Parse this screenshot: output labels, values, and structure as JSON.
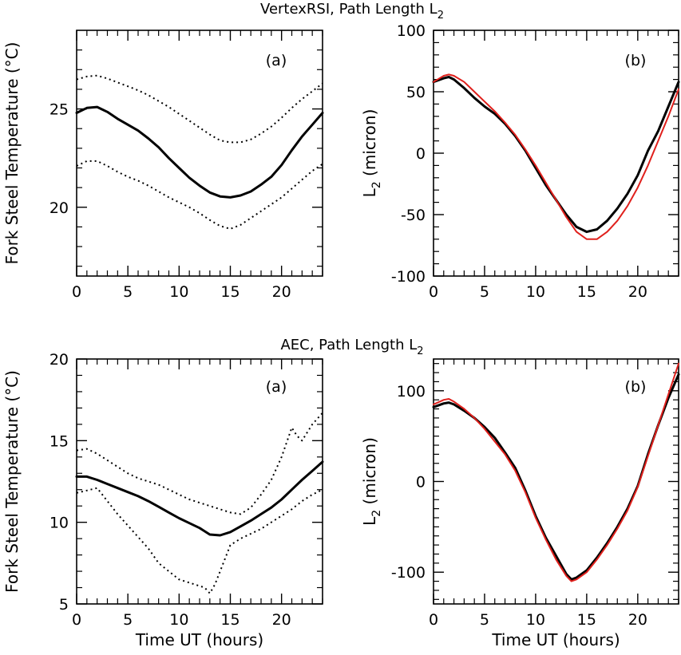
{
  "chart_data": [
    {
      "type": "line",
      "id": "vertex-a",
      "section_title": "VertexRSI, Path Length L",
      "section_title_sub": "2",
      "panel_label": "(a)",
      "xlabel": "",
      "ylabel": "Fork Steel Temperature (°C)",
      "xlim": [
        0,
        24
      ],
      "ylim": [
        16.5,
        29
      ],
      "xticks": [
        0,
        5,
        10,
        15,
        20
      ],
      "xminor": [
        1,
        2,
        3,
        4,
        6,
        7,
        8,
        9,
        11,
        12,
        13,
        14,
        16,
        17,
        18,
        19,
        21,
        22,
        23,
        24
      ],
      "yticks": [
        20,
        25
      ],
      "yminor": [
        17,
        18,
        19,
        21,
        22,
        23,
        24,
        26,
        27,
        28
      ],
      "series": [
        {
          "name": "mean",
          "color": "#000000",
          "style": "solid",
          "width": 3,
          "x": [
            0,
            1,
            2,
            3,
            4,
            5,
            6,
            7,
            8,
            9,
            10,
            11,
            12,
            13,
            14,
            15,
            16,
            17,
            18,
            19,
            20,
            21,
            22,
            23,
            24
          ],
          "y": [
            24.8,
            25.05,
            25.1,
            24.85,
            24.5,
            24.2,
            23.9,
            23.5,
            23.05,
            22.5,
            22.0,
            21.5,
            21.1,
            20.75,
            20.55,
            20.5,
            20.6,
            20.8,
            21.15,
            21.55,
            22.15,
            22.9,
            23.6,
            24.2,
            24.8
          ]
        },
        {
          "name": "upper",
          "color": "#000000",
          "style": "dotted",
          "width": 2,
          "x": [
            0,
            1,
            2,
            3,
            4,
            5,
            6,
            7,
            8,
            9,
            10,
            11,
            12,
            13,
            14,
            15,
            16,
            17,
            18,
            19,
            20,
            21,
            22,
            23,
            24
          ],
          "y": [
            26.5,
            26.65,
            26.7,
            26.55,
            26.35,
            26.15,
            25.95,
            25.7,
            25.4,
            25.1,
            24.75,
            24.4,
            24.05,
            23.7,
            23.4,
            23.3,
            23.3,
            23.45,
            23.75,
            24.1,
            24.55,
            25.05,
            25.5,
            25.9,
            26.3
          ]
        },
        {
          "name": "lower",
          "color": "#000000",
          "style": "dotted",
          "width": 2,
          "x": [
            0,
            1,
            2,
            3,
            4,
            5,
            6,
            7,
            8,
            9,
            10,
            11,
            12,
            13,
            14,
            15,
            16,
            17,
            18,
            19,
            20,
            21,
            22,
            23,
            24
          ],
          "y": [
            22.1,
            22.35,
            22.35,
            22.1,
            21.8,
            21.55,
            21.35,
            21.1,
            20.8,
            20.5,
            20.25,
            20.0,
            19.7,
            19.35,
            19.05,
            18.9,
            19.1,
            19.45,
            19.8,
            20.15,
            20.5,
            20.95,
            21.4,
            21.85,
            22.2
          ]
        }
      ]
    },
    {
      "type": "line",
      "id": "vertex-b",
      "panel_label": "(b)",
      "xlabel": "",
      "ylabel": "L",
      "ylabel_sub": "2",
      "ylabel_rest": " (micron)",
      "xlim": [
        0,
        24
      ],
      "ylim": [
        -100,
        100
      ],
      "xticks": [
        0,
        5,
        10,
        15,
        20
      ],
      "xminor": [
        1,
        2,
        3,
        4,
        6,
        7,
        8,
        9,
        11,
        12,
        13,
        14,
        16,
        17,
        18,
        19,
        21,
        22,
        23,
        24
      ],
      "yticks": [
        -100,
        -50,
        0,
        50,
        100
      ],
      "yminor": [
        -90,
        -80,
        -70,
        -60,
        -40,
        -30,
        -20,
        -10,
        10,
        20,
        30,
        40,
        60,
        70,
        80,
        90
      ],
      "series": [
        {
          "name": "measured",
          "color": "#000000",
          "style": "solid",
          "width": 3,
          "x": [
            0,
            1,
            1.5,
            2,
            3,
            4,
            5,
            6,
            7,
            8,
            9,
            10,
            11,
            12,
            13,
            14,
            15,
            16,
            17,
            18,
            19,
            20,
            21,
            22,
            23,
            24
          ],
          "y": [
            58,
            61,
            62,
            60,
            53,
            45,
            38,
            32,
            24,
            14,
            2,
            -12,
            -26,
            -38,
            -50,
            -60,
            -64,
            -62,
            -55,
            -45,
            -33,
            -18,
            2,
            18,
            38,
            58
          ]
        },
        {
          "name": "model",
          "color": "#e0201c",
          "style": "solid",
          "width": 2,
          "x": [
            0,
            1,
            1.5,
            2,
            3,
            4,
            5,
            6,
            7,
            8,
            9,
            10,
            11,
            12,
            13,
            14,
            15,
            16,
            17,
            18,
            19,
            20,
            21,
            22,
            23,
            24
          ],
          "y": [
            58,
            63,
            64,
            63,
            58,
            50,
            42,
            34,
            25,
            15,
            3,
            -10,
            -24,
            -38,
            -52,
            -64,
            -70,
            -70,
            -64,
            -55,
            -43,
            -28,
            -10,
            10,
            30,
            52
          ]
        }
      ]
    },
    {
      "type": "line",
      "id": "aec-a",
      "section_title": "AEC, Path Length L",
      "section_title_sub": "2",
      "panel_label": "(a)",
      "xlabel": "Time UT (hours)",
      "ylabel": "Fork Steel Temperature (°C)",
      "xlim": [
        0,
        24
      ],
      "ylim": [
        5,
        20
      ],
      "xticks": [
        0,
        5,
        10,
        15,
        20
      ],
      "xminor": [
        1,
        2,
        3,
        4,
        6,
        7,
        8,
        9,
        11,
        12,
        13,
        14,
        16,
        17,
        18,
        19,
        21,
        22,
        23,
        24
      ],
      "yticks": [
        5,
        10,
        15,
        20
      ],
      "yminor": [
        6,
        7,
        8,
        9,
        11,
        12,
        13,
        14,
        16,
        17,
        18,
        19
      ],
      "series": [
        {
          "name": "mean",
          "color": "#000000",
          "style": "solid",
          "width": 3,
          "x": [
            0,
            1,
            2,
            3,
            4,
            5,
            6,
            7,
            8,
            9,
            10,
            11,
            12,
            13,
            14,
            15,
            16,
            17,
            18,
            19,
            20,
            21,
            22,
            23,
            24
          ],
          "y": [
            12.8,
            12.8,
            12.6,
            12.35,
            12.1,
            11.85,
            11.6,
            11.3,
            10.95,
            10.6,
            10.25,
            9.95,
            9.65,
            9.25,
            9.2,
            9.4,
            9.75,
            10.1,
            10.5,
            10.9,
            11.4,
            12.0,
            12.6,
            13.15,
            13.7
          ]
        },
        {
          "name": "upper",
          "color": "#000000",
          "style": "dotted",
          "width": 2,
          "x": [
            0,
            1,
            2,
            3,
            4,
            5,
            6,
            7,
            8,
            9,
            10,
            11,
            12,
            13,
            14,
            15,
            16,
            17,
            18,
            19,
            20,
            21,
            21.5,
            22,
            23,
            24
          ],
          "y": [
            14.4,
            14.5,
            14.2,
            13.8,
            13.4,
            13.0,
            12.7,
            12.5,
            12.3,
            12.0,
            11.7,
            11.4,
            11.2,
            11.0,
            10.8,
            10.6,
            10.5,
            10.9,
            11.7,
            12.6,
            14.0,
            15.8,
            15.3,
            15.0,
            16.0,
            16.7
          ]
        },
        {
          "name": "lower",
          "color": "#000000",
          "style": "dotted",
          "width": 2,
          "x": [
            0,
            1,
            2,
            3,
            4,
            5,
            6,
            7,
            8,
            9,
            10,
            11,
            12,
            12.5,
            13,
            13.5,
            14,
            15,
            16,
            17,
            18,
            19,
            20,
            21,
            22,
            23,
            24
          ],
          "y": [
            11.8,
            11.95,
            12.1,
            11.3,
            10.5,
            9.8,
            9.1,
            8.4,
            7.5,
            7.0,
            6.5,
            6.3,
            6.1,
            6.0,
            5.65,
            6.2,
            7.0,
            8.6,
            9.0,
            9.3,
            9.6,
            10.0,
            10.4,
            10.8,
            11.3,
            11.7,
            12.0
          ]
        }
      ]
    },
    {
      "type": "line",
      "id": "aec-b",
      "panel_label": "(b)",
      "xlabel": "Time UT (hours)",
      "ylabel": "L",
      "ylabel_sub": "2",
      "ylabel_rest": " (micron)",
      "xlim": [
        0,
        24
      ],
      "ylim": [
        -135,
        135
      ],
      "xticks": [
        0,
        5,
        10,
        15,
        20
      ],
      "xminor": [
        1,
        2,
        3,
        4,
        6,
        7,
        8,
        9,
        11,
        12,
        13,
        14,
        16,
        17,
        18,
        19,
        21,
        22,
        23,
        24
      ],
      "yticks": [
        -100,
        0,
        100
      ],
      "yminor": [
        -130,
        -120,
        -110,
        -90,
        -80,
        -70,
        -60,
        -50,
        -40,
        -30,
        -20,
        -10,
        10,
        20,
        30,
        40,
        50,
        60,
        70,
        80,
        90,
        110,
        120,
        130
      ],
      "series": [
        {
          "name": "measured",
          "color": "#000000",
          "style": "solid",
          "width": 3,
          "x": [
            0,
            1,
            1.5,
            2,
            3,
            4,
            5,
            6,
            7,
            8,
            9,
            10,
            11,
            12,
            13,
            13.5,
            14,
            15,
            16,
            17,
            18,
            19,
            20,
            21,
            22,
            23,
            24
          ],
          "y": [
            82,
            86,
            87,
            85,
            78,
            70,
            60,
            48,
            32,
            15,
            -10,
            -38,
            -62,
            -82,
            -102,
            -108,
            -106,
            -98,
            -84,
            -68,
            -50,
            -30,
            -5,
            30,
            62,
            92,
            118
          ]
        },
        {
          "name": "model",
          "color": "#e0201c",
          "style": "solid",
          "width": 2,
          "x": [
            0,
            1,
            1.5,
            2,
            3,
            4,
            5,
            6,
            7,
            8,
            9,
            10,
            11,
            12,
            13,
            13.5,
            14,
            15,
            16,
            17,
            18,
            19,
            20,
            21,
            22,
            23,
            24
          ],
          "y": [
            85,
            90,
            91,
            88,
            80,
            70,
            58,
            44,
            30,
            12,
            -12,
            -40,
            -64,
            -86,
            -104,
            -110,
            -108,
            -100,
            -86,
            -70,
            -52,
            -32,
            -6,
            28,
            62,
            96,
            130
          ]
        }
      ]
    }
  ]
}
